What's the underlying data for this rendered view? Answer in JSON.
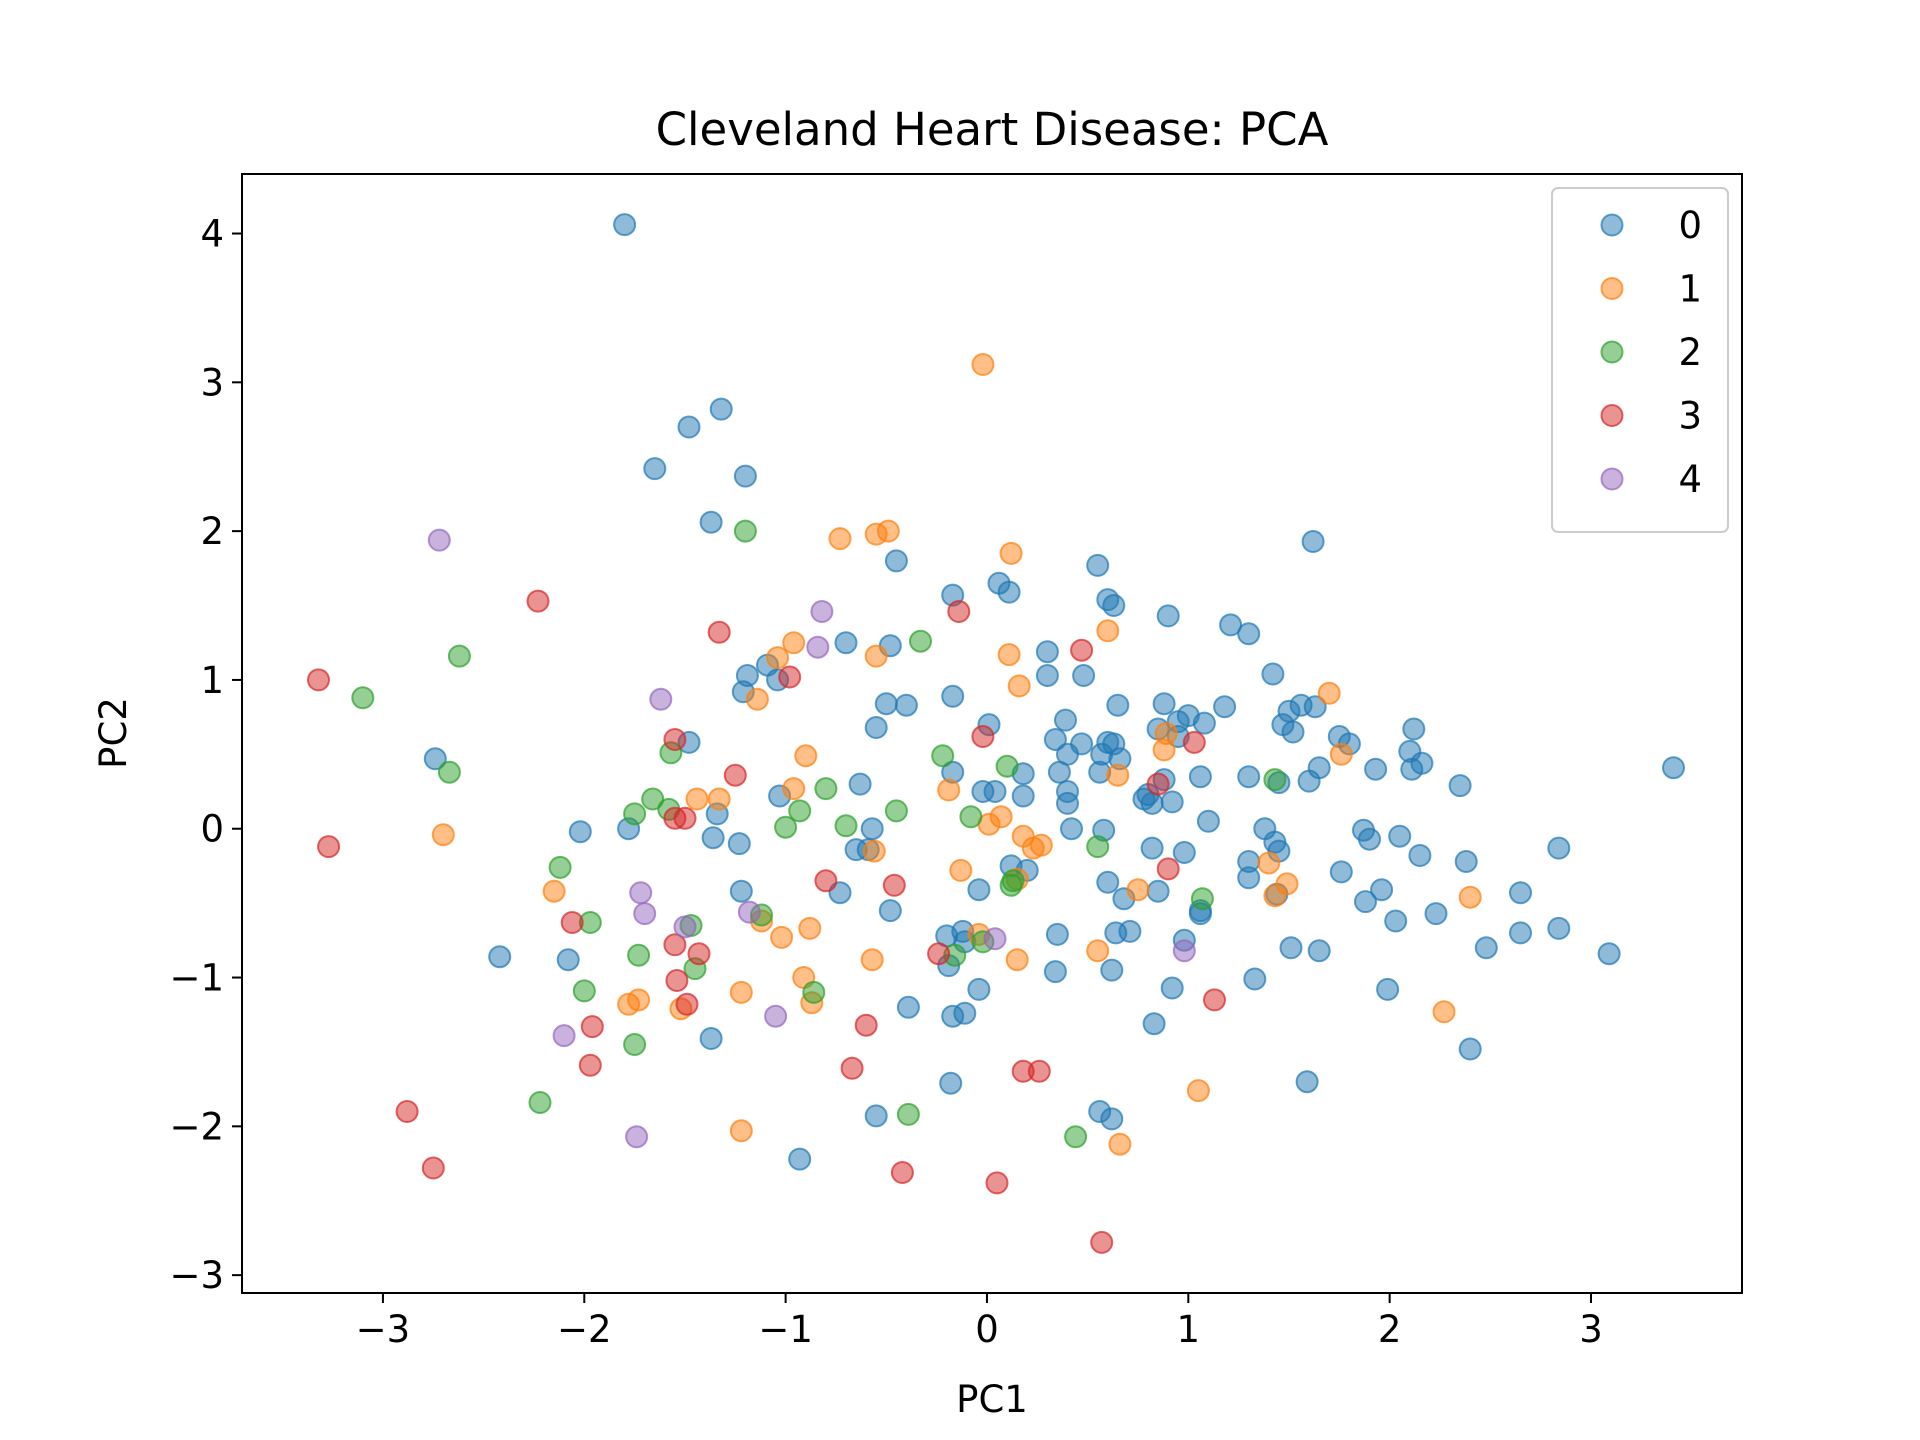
{
  "chart_data": {
    "type": "scatter",
    "title": "Cleveland Heart Disease: PCA",
    "xlabel": "PC1",
    "ylabel": "PC2",
    "xlim": [
      -3.7,
      3.75
    ],
    "ylim": [
      -3.12,
      4.4
    ],
    "xticks": [
      -3,
      -2,
      -1,
      0,
      1,
      2,
      3
    ],
    "yticks": [
      -3,
      -2,
      -1,
      0,
      1,
      2,
      3,
      4
    ],
    "grid": false,
    "legend_position": "top-right",
    "colors": {
      "0": "#1f77b4",
      "1": "#ff7f0e",
      "2": "#2ca02c",
      "3": "#d62728",
      "4": "#9467bd"
    },
    "series": [
      {
        "name": "0",
        "points": [
          [
            -1.8,
            4.06
          ],
          [
            -1.32,
            2.82
          ],
          [
            -1.48,
            2.7
          ],
          [
            -1.65,
            2.42
          ],
          [
            -1.2,
            2.37
          ],
          [
            -1.37,
            2.06
          ],
          [
            -0.45,
            1.8
          ],
          [
            -0.17,
            1.57
          ],
          [
            0.06,
            1.65
          ],
          [
            0.11,
            1.59
          ],
          [
            0.55,
            1.77
          ],
          [
            0.6,
            1.54
          ],
          [
            0.63,
            1.5
          ],
          [
            0.9,
            1.43
          ],
          [
            1.21,
            1.37
          ],
          [
            1.3,
            1.31
          ],
          [
            1.62,
            1.93
          ],
          [
            -0.7,
            1.25
          ],
          [
            -0.48,
            1.23
          ],
          [
            0.3,
            1.19
          ],
          [
            0.3,
            1.03
          ],
          [
            0.48,
            1.03
          ],
          [
            -1.09,
            1.1
          ],
          [
            -1.19,
            1.03
          ],
          [
            -1.21,
            0.92
          ],
          [
            -1.04,
            1.0
          ],
          [
            1.42,
            1.04
          ],
          [
            0.65,
            0.83
          ],
          [
            0.88,
            0.84
          ],
          [
            1.0,
            0.76
          ],
          [
            0.95,
            0.72
          ],
          [
            1.08,
            0.71
          ],
          [
            1.18,
            0.82
          ],
          [
            1.5,
            0.79
          ],
          [
            1.56,
            0.83
          ],
          [
            1.63,
            0.82
          ],
          [
            1.47,
            0.7
          ],
          [
            1.52,
            0.65
          ],
          [
            -0.5,
            0.84
          ],
          [
            -0.4,
            0.83
          ],
          [
            -0.17,
            0.89
          ],
          [
            0.01,
            0.7
          ],
          [
            -0.55,
            0.68
          ],
          [
            0.34,
            0.6
          ],
          [
            0.39,
            0.73
          ],
          [
            0.4,
            0.5
          ],
          [
            0.47,
            0.57
          ],
          [
            0.6,
            0.58
          ],
          [
            0.63,
            0.57
          ],
          [
            0.57,
            0.5
          ],
          [
            0.66,
            0.47
          ],
          [
            0.85,
            0.67
          ],
          [
            0.95,
            0.62
          ],
          [
            0.78,
            0.2
          ],
          [
            0.82,
            0.17
          ],
          [
            0.88,
            0.33
          ],
          [
            0.92,
            0.18
          ],
          [
            1.06,
            0.35
          ],
          [
            0.36,
            0.38
          ],
          [
            0.4,
            0.25
          ],
          [
            0.4,
            0.17
          ],
          [
            0.56,
            0.38
          ],
          [
            0.8,
            0.23
          ],
          [
            0.18,
            0.37
          ],
          [
            0.18,
            0.22
          ],
          [
            0.04,
            0.25
          ],
          [
            -0.02,
            0.25
          ],
          [
            -0.17,
            0.38
          ],
          [
            -0.63,
            0.3
          ],
          [
            -1.48,
            0.58
          ],
          [
            -1.03,
            0.22
          ],
          [
            -1.34,
            0.1
          ],
          [
            -1.23,
            -0.1
          ],
          [
            -1.36,
            -0.06
          ],
          [
            -1.78,
            0.0
          ],
          [
            -2.02,
            -0.02
          ],
          [
            -0.57,
            0.0
          ],
          [
            -0.65,
            -0.14
          ],
          [
            -0.59,
            -0.14
          ],
          [
            -1.22,
            -0.42
          ],
          [
            -0.48,
            -0.55
          ],
          [
            -0.73,
            -0.43
          ],
          [
            -0.2,
            -0.72
          ],
          [
            -0.12,
            -0.69
          ],
          [
            -0.11,
            -0.76
          ],
          [
            -0.19,
            -0.92
          ],
          [
            -0.04,
            -0.41
          ],
          [
            0.12,
            -0.25
          ],
          [
            0.2,
            -0.28
          ],
          [
            0.35,
            -0.71
          ],
          [
            0.42,
            0.0
          ],
          [
            0.58,
            -0.01
          ],
          [
            0.6,
            -0.36
          ],
          [
            0.62,
            -0.95
          ],
          [
            0.64,
            -0.7
          ],
          [
            0.68,
            -0.47
          ],
          [
            0.71,
            -0.69
          ],
          [
            0.82,
            -0.13
          ],
          [
            0.85,
            -0.42
          ],
          [
            0.98,
            -0.75
          ],
          [
            0.98,
            -0.16
          ],
          [
            1.06,
            -0.55
          ],
          [
            1.06,
            -0.57
          ],
          [
            1.1,
            0.05
          ],
          [
            1.3,
            0.35
          ],
          [
            1.3,
            -0.22
          ],
          [
            1.3,
            -0.33
          ],
          [
            1.38,
            0.0
          ],
          [
            1.43,
            -0.09
          ],
          [
            1.45,
            -0.15
          ],
          [
            1.44,
            -0.44
          ],
          [
            1.45,
            0.31
          ],
          [
            1.65,
            0.41
          ],
          [
            1.6,
            0.32
          ],
          [
            1.75,
            0.62
          ],
          [
            1.8,
            0.57
          ],
          [
            1.76,
            -0.29
          ],
          [
            1.87,
            -0.01
          ],
          [
            1.9,
            -0.07
          ],
          [
            1.93,
            0.4
          ],
          [
            1.88,
            -0.49
          ],
          [
            1.96,
            -0.41
          ],
          [
            2.1,
            0.52
          ],
          [
            2.11,
            0.4
          ],
          [
            2.12,
            0.67
          ],
          [
            2.16,
            0.44
          ],
          [
            2.05,
            -0.05
          ],
          [
            2.03,
            -0.62
          ],
          [
            2.15,
            -0.18
          ],
          [
            2.23,
            -0.57
          ],
          [
            2.35,
            0.29
          ],
          [
            2.38,
            -0.22
          ],
          [
            2.4,
            -1.48
          ],
          [
            2.48,
            -0.8
          ],
          [
            2.65,
            -0.43
          ],
          [
            2.65,
            -0.7
          ],
          [
            2.84,
            -0.13
          ],
          [
            2.84,
            -0.67
          ],
          [
            3.09,
            -0.84
          ],
          [
            3.41,
            0.41
          ],
          [
            1.51,
            -0.8
          ],
          [
            1.65,
            -0.82
          ],
          [
            1.59,
            -1.7
          ],
          [
            1.99,
            -1.08
          ],
          [
            1.33,
            -1.01
          ],
          [
            0.92,
            -1.07
          ],
          [
            0.83,
            -1.31
          ],
          [
            0.34,
            -0.96
          ],
          [
            -0.04,
            -1.08
          ],
          [
            -0.17,
            -1.26
          ],
          [
            -0.11,
            -1.24
          ],
          [
            -0.39,
            -1.2
          ],
          [
            -1.37,
            -1.41
          ],
          [
            -0.18,
            -1.71
          ],
          [
            -0.55,
            -1.93
          ],
          [
            -0.93,
            -2.22
          ],
          [
            0.56,
            -1.9
          ],
          [
            0.62,
            -1.95
          ],
          [
            -2.08,
            -0.88
          ],
          [
            -2.42,
            -0.86
          ],
          [
            -2.74,
            0.47
          ]
        ]
      },
      {
        "name": "1",
        "points": [
          [
            -0.02,
            3.12
          ],
          [
            -0.73,
            1.95
          ],
          [
            -0.55,
            1.98
          ],
          [
            -0.49,
            2.0
          ],
          [
            0.12,
            1.85
          ],
          [
            -0.55,
            1.16
          ],
          [
            0.11,
            1.17
          ],
          [
            0.16,
            0.96
          ],
          [
            0.6,
            1.33
          ],
          [
            -0.96,
            1.25
          ],
          [
            -1.04,
            1.15
          ],
          [
            -1.14,
            0.87
          ],
          [
            1.7,
            0.91
          ],
          [
            1.76,
            0.5
          ],
          [
            0.88,
            0.53
          ],
          [
            0.89,
            0.64
          ],
          [
            0.65,
            0.36
          ],
          [
            -0.9,
            0.49
          ],
          [
            -0.96,
            0.27
          ],
          [
            -1.33,
            0.2
          ],
          [
            -1.44,
            0.2
          ],
          [
            -0.19,
            0.26
          ],
          [
            0.01,
            0.03
          ],
          [
            0.07,
            0.08
          ],
          [
            0.18,
            -0.05
          ],
          [
            0.23,
            -0.13
          ],
          [
            0.27,
            -0.11
          ],
          [
            -0.13,
            -0.28
          ],
          [
            0.15,
            -0.34
          ],
          [
            -0.56,
            -0.15
          ],
          [
            -0.91,
            -1.0
          ],
          [
            -0.88,
            -0.67
          ],
          [
            -1.02,
            -0.73
          ],
          [
            -1.12,
            -0.62
          ],
          [
            -0.57,
            -0.88
          ],
          [
            -0.04,
            -0.71
          ],
          [
            0.15,
            -0.88
          ],
          [
            0.55,
            -0.82
          ],
          [
            0.75,
            -0.41
          ],
          [
            1.43,
            -0.45
          ],
          [
            1.49,
            -0.37
          ],
          [
            1.4,
            -0.23
          ],
          [
            1.05,
            -1.76
          ],
          [
            0.66,
            -2.12
          ],
          [
            2.27,
            -1.23
          ],
          [
            2.4,
            -0.46
          ],
          [
            -2.15,
            -0.42
          ],
          [
            -2.7,
            -0.04
          ],
          [
            -1.22,
            -1.1
          ],
          [
            -0.87,
            -1.17
          ],
          [
            -1.52,
            -1.21
          ],
          [
            -1.73,
            -1.15
          ],
          [
            -1.78,
            -1.18
          ],
          [
            -1.22,
            -2.03
          ]
        ]
      },
      {
        "name": "2",
        "points": [
          [
            -1.2,
            2.0
          ],
          [
            -0.33,
            1.26
          ],
          [
            -2.62,
            1.16
          ],
          [
            -3.1,
            0.88
          ],
          [
            -2.67,
            0.38
          ],
          [
            -1.57,
            0.51
          ],
          [
            -1.66,
            0.2
          ],
          [
            -1.75,
            0.1
          ],
          [
            -1.58,
            0.13
          ],
          [
            -0.93,
            0.12
          ],
          [
            -1.0,
            0.01
          ],
          [
            -0.8,
            0.27
          ],
          [
            -0.7,
            0.02
          ],
          [
            -0.45,
            0.12
          ],
          [
            -0.22,
            0.49
          ],
          [
            -0.08,
            0.08
          ],
          [
            0.1,
            0.42
          ],
          [
            0.12,
            -0.38
          ],
          [
            0.13,
            -0.35
          ],
          [
            0.55,
            -0.12
          ],
          [
            -0.16,
            -0.85
          ],
          [
            -0.02,
            -0.76
          ],
          [
            -1.12,
            -0.58
          ],
          [
            -1.47,
            -0.65
          ],
          [
            -1.73,
            -0.85
          ],
          [
            -1.97,
            -0.63
          ],
          [
            -2.12,
            -0.26
          ],
          [
            -2.0,
            -1.09
          ],
          [
            -1.75,
            -1.45
          ],
          [
            -1.45,
            -0.94
          ],
          [
            -0.86,
            -1.1
          ],
          [
            -0.39,
            -1.92
          ],
          [
            0.44,
            -2.07
          ],
          [
            1.07,
            -0.47
          ],
          [
            1.43,
            0.33
          ],
          [
            -2.22,
            -1.84
          ]
        ]
      },
      {
        "name": "3",
        "points": [
          [
            -3.32,
            1.0
          ],
          [
            -3.27,
            -0.12
          ],
          [
            -2.23,
            1.53
          ],
          [
            -1.33,
            1.32
          ],
          [
            -0.14,
            1.46
          ],
          [
            0.47,
            1.2
          ],
          [
            -0.98,
            1.02
          ],
          [
            -1.55,
            0.6
          ],
          [
            -1.25,
            0.36
          ],
          [
            -0.02,
            0.62
          ],
          [
            1.03,
            0.58
          ],
          [
            0.85,
            0.3
          ],
          [
            -1.55,
            0.07
          ],
          [
            -1.5,
            0.07
          ],
          [
            -0.8,
            -0.35
          ],
          [
            -0.46,
            -0.38
          ],
          [
            0.9,
            -0.27
          ],
          [
            -2.06,
            -0.63
          ],
          [
            -1.55,
            -0.78
          ],
          [
            -1.43,
            -0.84
          ],
          [
            -1.54,
            -1.02
          ],
          [
            -1.49,
            -1.18
          ],
          [
            -1.96,
            -1.33
          ],
          [
            -1.97,
            -1.59
          ],
          [
            -0.6,
            -1.32
          ],
          [
            -0.67,
            -1.61
          ],
          [
            -0.24,
            -0.84
          ],
          [
            0.18,
            -1.63
          ],
          [
            0.26,
            -1.63
          ],
          [
            1.13,
            -1.15
          ],
          [
            -2.88,
            -1.9
          ],
          [
            -2.75,
            -2.28
          ],
          [
            -0.42,
            -2.31
          ],
          [
            0.05,
            -2.38
          ],
          [
            0.57,
            -2.78
          ]
        ]
      },
      {
        "name": "4",
        "points": [
          [
            -2.72,
            1.94
          ],
          [
            -0.82,
            1.46
          ],
          [
            -0.84,
            1.22
          ],
          [
            -1.62,
            0.87
          ],
          [
            -1.72,
            -0.43
          ],
          [
            -1.7,
            -0.57
          ],
          [
            -1.5,
            -0.66
          ],
          [
            -1.18,
            -0.56
          ],
          [
            0.04,
            -0.74
          ],
          [
            0.98,
            -0.82
          ],
          [
            -1.05,
            -1.26
          ],
          [
            -2.1,
            -1.39
          ],
          [
            -1.74,
            -2.07
          ]
        ]
      }
    ]
  }
}
